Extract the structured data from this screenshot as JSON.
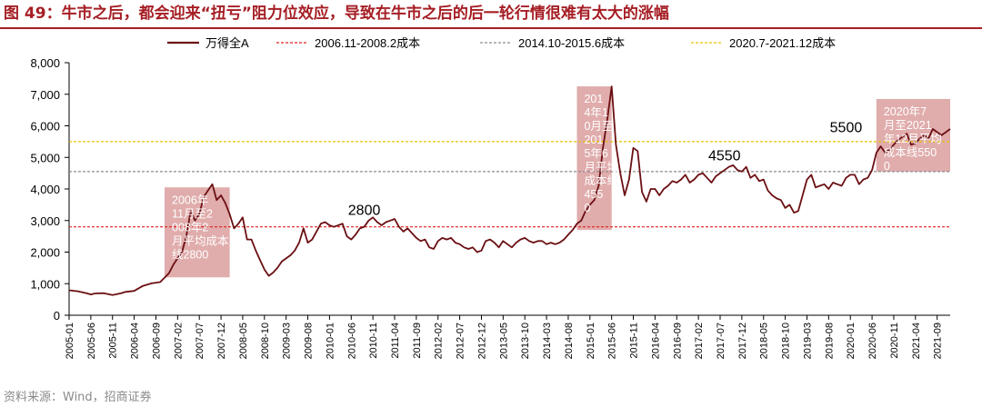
{
  "figure": {
    "title": "图 49：牛市之后，都会迎来“扭亏”阻力位效应，导致在牛市之后的后一轮行情很难有太大的涨幅",
    "source": "资料来源：Wind，招商证券"
  },
  "chart_data": {
    "type": "line",
    "y_ticks": [
      0,
      1000,
      2000,
      3000,
      4000,
      5000,
      6000,
      7000,
      8000
    ],
    "y_tick_labels": [
      "0",
      "1,000",
      "2,000",
      "3,000",
      "4,000",
      "5,000",
      "6,000",
      "7,000",
      "8,000"
    ],
    "ylim": [
      0,
      8000
    ],
    "x_tick_labels": [
      "2005-01",
      "2005-06",
      "2005-11",
      "2006-04",
      "2006-09",
      "2007-02",
      "2007-07",
      "2007-12",
      "2008-05",
      "2008-10",
      "2009-03",
      "2009-08",
      "2010-01",
      "2010-06",
      "2010-11",
      "2011-04",
      "2011-09",
      "2012-02",
      "2012-07",
      "2012-12",
      "2013-05",
      "2013-10",
      "2014-03",
      "2014-08",
      "2015-01",
      "2015-06",
      "2015-11",
      "2016-04",
      "2016-09",
      "2017-02",
      "2017-07",
      "2017-12",
      "2018-05",
      "2018-10",
      "2019-03",
      "2019-08",
      "2020-01",
      "2020-06",
      "2020-11",
      "2021-04",
      "2021-09"
    ],
    "xlim": [
      "2005-01",
      "2021-12"
    ],
    "grid": false,
    "legend_position": "top",
    "series": [
      {
        "name": "万得全A",
        "color": "#6b0f12",
        "points": [
          [
            "2005-01",
            790
          ],
          [
            "2005-03",
            760
          ],
          [
            "2005-05",
            700
          ],
          [
            "2005-06",
            660
          ],
          [
            "2005-07",
            690
          ],
          [
            "2005-09",
            700
          ],
          [
            "2005-11",
            640
          ],
          [
            "2006-01",
            700
          ],
          [
            "2006-02",
            740
          ],
          [
            "2006-04",
            770
          ],
          [
            "2006-06",
            930
          ],
          [
            "2006-08",
            1010
          ],
          [
            "2006-10",
            1050
          ],
          [
            "2006-12",
            1330
          ],
          [
            "2007-01",
            1600
          ],
          [
            "2007-02",
            1800
          ],
          [
            "2007-03",
            2000
          ],
          [
            "2007-04",
            2500
          ],
          [
            "2007-05",
            3300
          ],
          [
            "2007-06",
            3000
          ],
          [
            "2007-07",
            3200
          ],
          [
            "2007-08",
            3750
          ],
          [
            "2007-09",
            3950
          ],
          [
            "2007-10",
            4150
          ],
          [
            "2007-11",
            3650
          ],
          [
            "2007-12",
            3800
          ],
          [
            "2008-01",
            3550
          ],
          [
            "2008-02",
            3200
          ],
          [
            "2008-03",
            2750
          ],
          [
            "2008-04",
            2900
          ],
          [
            "2008-05",
            3100
          ],
          [
            "2008-06",
            2400
          ],
          [
            "2008-07",
            2400
          ],
          [
            "2008-08",
            2050
          ],
          [
            "2008-09",
            1750
          ],
          [
            "2008-10",
            1450
          ],
          [
            "2008-11",
            1250
          ],
          [
            "2008-12",
            1350
          ],
          [
            "2009-01",
            1500
          ],
          [
            "2009-02",
            1700
          ],
          [
            "2009-03",
            1800
          ],
          [
            "2009-04",
            1900
          ],
          [
            "2009-05",
            2050
          ],
          [
            "2009-06",
            2300
          ],
          [
            "2009-07",
            2750
          ],
          [
            "2009-08",
            2300
          ],
          [
            "2009-09",
            2400
          ],
          [
            "2009-10",
            2650
          ],
          [
            "2009-11",
            2900
          ],
          [
            "2009-12",
            2950
          ],
          [
            "2010-01",
            2850
          ],
          [
            "2010-02",
            2800
          ],
          [
            "2010-03",
            2850
          ],
          [
            "2010-04",
            2900
          ],
          [
            "2010-05",
            2500
          ],
          [
            "2010-06",
            2400
          ],
          [
            "2010-07",
            2550
          ],
          [
            "2010-08",
            2750
          ],
          [
            "2010-09",
            2800
          ],
          [
            "2010-10",
            3000
          ],
          [
            "2010-11",
            3100
          ],
          [
            "2010-12",
            2950
          ],
          [
            "2011-01",
            2850
          ],
          [
            "2011-02",
            2950
          ],
          [
            "2011-03",
            3000
          ],
          [
            "2011-04",
            3050
          ],
          [
            "2011-05",
            2800
          ],
          [
            "2011-06",
            2650
          ],
          [
            "2011-07",
            2750
          ],
          [
            "2011-08",
            2600
          ],
          [
            "2011-09",
            2450
          ],
          [
            "2011-10",
            2350
          ],
          [
            "2011-11",
            2400
          ],
          [
            "2011-12",
            2150
          ],
          [
            "2012-01",
            2100
          ],
          [
            "2012-02",
            2350
          ],
          [
            "2012-03",
            2450
          ],
          [
            "2012-04",
            2400
          ],
          [
            "2012-05",
            2450
          ],
          [
            "2012-06",
            2300
          ],
          [
            "2012-07",
            2250
          ],
          [
            "2012-08",
            2150
          ],
          [
            "2012-09",
            2100
          ],
          [
            "2012-10",
            2150
          ],
          [
            "2012-11",
            2000
          ],
          [
            "2012-12",
            2050
          ],
          [
            "2013-01",
            2350
          ],
          [
            "2013-02",
            2400
          ],
          [
            "2013-03",
            2300
          ],
          [
            "2013-04",
            2150
          ],
          [
            "2013-05",
            2350
          ],
          [
            "2013-06",
            2250
          ],
          [
            "2013-07",
            2150
          ],
          [
            "2013-08",
            2300
          ],
          [
            "2013-09",
            2400
          ],
          [
            "2013-10",
            2450
          ],
          [
            "2013-11",
            2350
          ],
          [
            "2013-12",
            2300
          ],
          [
            "2014-01",
            2350
          ],
          [
            "2014-02",
            2350
          ],
          [
            "2014-03",
            2250
          ],
          [
            "2014-04",
            2300
          ],
          [
            "2014-05",
            2250
          ],
          [
            "2014-06",
            2300
          ],
          [
            "2014-07",
            2400
          ],
          [
            "2014-08",
            2550
          ],
          [
            "2014-09",
            2700
          ],
          [
            "2014-10",
            2900
          ],
          [
            "2014-11",
            3000
          ],
          [
            "2014-12",
            3300
          ],
          [
            "2015-01",
            3500
          ],
          [
            "2015-02",
            3650
          ],
          [
            "2015-03",
            4100
          ],
          [
            "2015-04",
            5300
          ],
          [
            "2015-05",
            6200
          ],
          [
            "2015-06",
            7250
          ],
          [
            "2015-07",
            5400
          ],
          [
            "2015-08",
            4500
          ],
          [
            "2015-09",
            3800
          ],
          [
            "2015-10",
            4300
          ],
          [
            "2015-11",
            5300
          ],
          [
            "2015-12",
            5200
          ],
          [
            "2016-01",
            3900
          ],
          [
            "2016-02",
            3600
          ],
          [
            "2016-03",
            4000
          ],
          [
            "2016-04",
            4000
          ],
          [
            "2016-05",
            3800
          ],
          [
            "2016-06",
            4000
          ],
          [
            "2016-07",
            4100
          ],
          [
            "2016-08",
            4250
          ],
          [
            "2016-09",
            4200
          ],
          [
            "2016-10",
            4300
          ],
          [
            "2016-11",
            4450
          ],
          [
            "2016-12",
            4200
          ],
          [
            "2017-01",
            4300
          ],
          [
            "2017-02",
            4450
          ],
          [
            "2017-03",
            4500
          ],
          [
            "2017-04",
            4350
          ],
          [
            "2017-05",
            4200
          ],
          [
            "2017-06",
            4400
          ],
          [
            "2017-07",
            4500
          ],
          [
            "2017-08",
            4600
          ],
          [
            "2017-09",
            4700
          ],
          [
            "2017-10",
            4750
          ],
          [
            "2017-11",
            4600
          ],
          [
            "2017-12",
            4550
          ],
          [
            "2018-01",
            4700
          ],
          [
            "2018-02",
            4350
          ],
          [
            "2018-03",
            4450
          ],
          [
            "2018-04",
            4250
          ],
          [
            "2018-05",
            4300
          ],
          [
            "2018-06",
            3950
          ],
          [
            "2018-07",
            3800
          ],
          [
            "2018-08",
            3700
          ],
          [
            "2018-09",
            3650
          ],
          [
            "2018-10",
            3400
          ],
          [
            "2018-11",
            3500
          ],
          [
            "2018-12",
            3250
          ],
          [
            "2019-01",
            3300
          ],
          [
            "2019-02",
            3800
          ],
          [
            "2019-03",
            4300
          ],
          [
            "2019-04",
            4450
          ],
          [
            "2019-05",
            4050
          ],
          [
            "2019-06",
            4100
          ],
          [
            "2019-07",
            4150
          ],
          [
            "2019-08",
            4000
          ],
          [
            "2019-09",
            4200
          ],
          [
            "2019-10",
            4150
          ],
          [
            "2019-11",
            4100
          ],
          [
            "2019-12",
            4350
          ],
          [
            "2020-01",
            4450
          ],
          [
            "2020-02",
            4450
          ],
          [
            "2020-03",
            4150
          ],
          [
            "2020-04",
            4300
          ],
          [
            "2020-05",
            4350
          ],
          [
            "2020-06",
            4600
          ],
          [
            "2020-07",
            5150
          ],
          [
            "2020-08",
            5350
          ],
          [
            "2020-09",
            5150
          ],
          [
            "2020-10",
            5250
          ],
          [
            "2020-11",
            5400
          ],
          [
            "2020-12",
            5550
          ],
          [
            "2021-01",
            5650
          ],
          [
            "2021-02",
            5750
          ],
          [
            "2021-03",
            5400
          ],
          [
            "2021-04",
            5450
          ],
          [
            "2021-05",
            5600
          ],
          [
            "2021-06",
            5700
          ],
          [
            "2021-07",
            5600
          ],
          [
            "2021-08",
            5900
          ],
          [
            "2021-09",
            5800
          ],
          [
            "2021-10",
            5700
          ],
          [
            "2021-11",
            5800
          ],
          [
            "2021-12",
            5900
          ]
        ]
      },
      {
        "name": "2006.11-2008.2成本",
        "style": "dashed",
        "color": "#e02020",
        "value": 2800
      },
      {
        "name": "2014.10-2015.6成本",
        "style": "dashed",
        "color": "#8c8c8c",
        "value": 4550
      },
      {
        "name": "2020.7-2021.12成本",
        "style": "dashed",
        "color": "#e6c200",
        "value": 5500
      }
    ],
    "highlight_boxes": [
      {
        "from": "2006-11",
        "to": "2008-02",
        "y_range": [
          1200,
          4050
        ],
        "color": "#d99a9a",
        "text": "2006年11月至2008年2月平均成本线2800"
      },
      {
        "from": "2014-10",
        "to": "2015-06",
        "y_range": [
          2700,
          7250
        ],
        "color": "#d99a9a",
        "text": "2014年10月至2015年6月平均成本线4550"
      },
      {
        "from": "2020-07",
        "to": "2021-12",
        "y_range": [
          4550,
          6850
        ],
        "color": "#d99a9a",
        "text": "2020年7月至2021年12月平均成本线5500"
      }
    ],
    "annotations": [
      {
        "text": "2800",
        "x": "2010-09",
        "y": 3180
      },
      {
        "text": "4550",
        "x": "2017-08",
        "y": 4900
      },
      {
        "text": "5500",
        "x": "2019-12",
        "y": 5800
      }
    ]
  }
}
